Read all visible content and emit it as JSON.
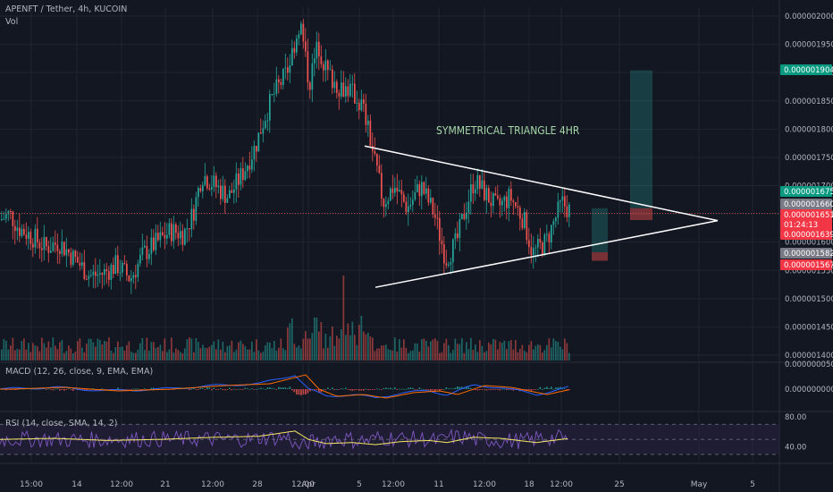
{
  "header": {
    "symbol": "APENFT / Tether, 4h, KUCOIN",
    "volume_label": "Vol",
    "macd_label": "MACD (12, 26, close, 9, EMA, EMA)",
    "rsi_label": "RSI (14, close, SMA, 14, 2)"
  },
  "annotation": {
    "text": "SYMMETRICAL TRIANGLE 4HR",
    "color": "#a5d6a7"
  },
  "colors": {
    "background": "#131722",
    "up": "#26a69a",
    "down": "#ef5350",
    "grid": "#1f2430",
    "axis_text": "#b2b5be",
    "trendline": "#ffffff",
    "macd_line": "#2962ff",
    "signal_line": "#ff6d00",
    "rsi_line": "#7e57c2",
    "rsi_ma": "#f5e663",
    "rsi_band": "#2a2242"
  },
  "chart_data": [
    {
      "type": "candlestick",
      "name": "price",
      "yaxis_ticks": [
        "0.000002000",
        "0.000001950",
        "0.000001900",
        "0.000001850",
        "0.000001800",
        "0.000001750",
        "0.000001700",
        "0.000001650",
        "0.000001600",
        "0.000001550",
        "0.000001500",
        "0.000001450",
        "0.000001400"
      ],
      "yrange": [
        1.38e-06,
        2.03e-06
      ],
      "xaxis_ticks": [
        "15:00",
        "14",
        "12:00",
        "21",
        "12:00",
        "28",
        "12:00",
        "Apr",
        "5",
        "12:00",
        "11",
        "12:00",
        "18",
        "12:00",
        "25",
        "May",
        "5"
      ],
      "price_tags": [
        {
          "value": "0.000001904",
          "color": "#089981"
        },
        {
          "value": "0.000001675",
          "color": "#089981"
        },
        {
          "value": "0.000001660",
          "color": "#787b86"
        },
        {
          "value": "0.000001651",
          "color": "#f23645"
        },
        {
          "value": "01:24:13",
          "color": "#f23645"
        },
        {
          "value": "0.000001639",
          "color": "#f23645"
        },
        {
          "value": "0.000001582",
          "color": "#787b86"
        },
        {
          "value": "0.000001567",
          "color": "#f23645"
        }
      ],
      "current_price": 1.651e-06,
      "triangle": {
        "upper": [
          [
            1.77e-06,
            1.638e-06
          ]
        ],
        "lower": [
          [
            1.52e-06,
            1.612e-06
          ]
        ]
      }
    },
    {
      "type": "bar",
      "name": "volume"
    },
    {
      "type": "line",
      "name": "macd",
      "yaxis_ticks": [
        "0.000000050",
        "0.000000000"
      ]
    },
    {
      "type": "line",
      "name": "rsi",
      "yaxis_ticks": [
        "80.00",
        "40.00"
      ],
      "bands": [
        70,
        50,
        30
      ]
    }
  ]
}
